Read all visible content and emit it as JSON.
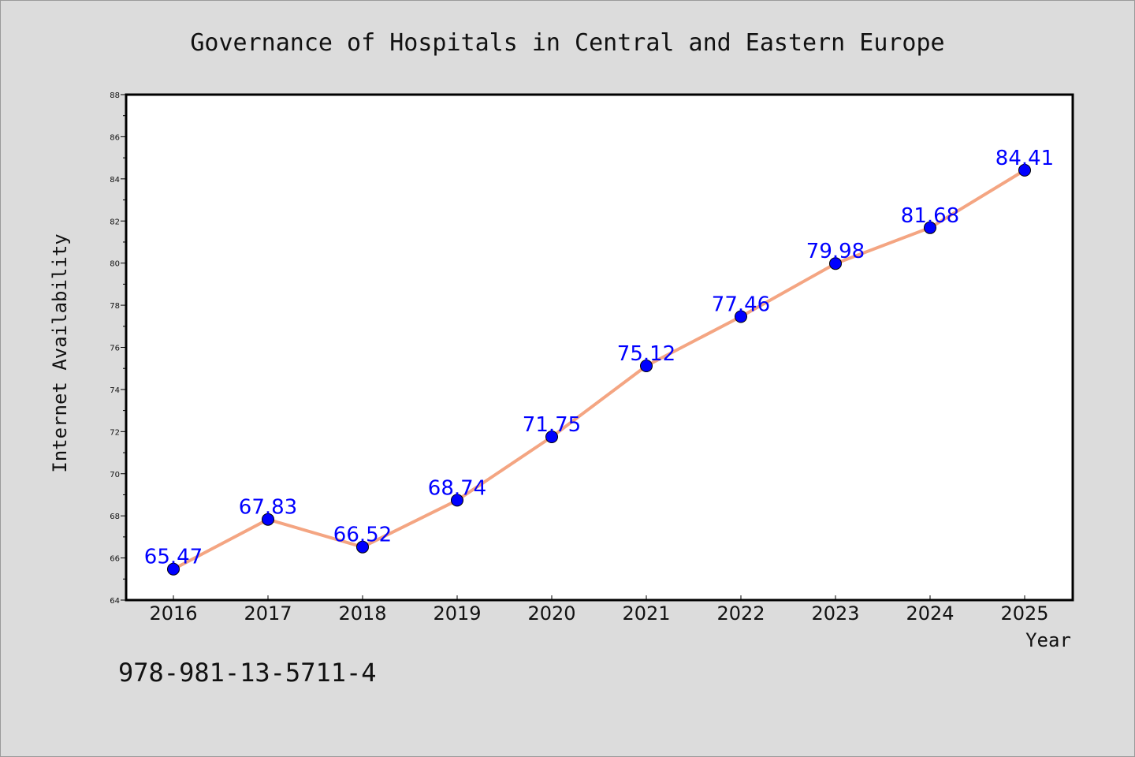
{
  "chart_data": {
    "type": "line",
    "title": "Governance of Hospitals in Central and Eastern Europe",
    "xlabel": "Year",
    "ylabel": "Internet Availability",
    "categories": [
      "2016",
      "2017",
      "2018",
      "2019",
      "2020",
      "2021",
      "2022",
      "2023",
      "2024",
      "2025"
    ],
    "values": [
      65.47,
      67.83,
      66.52,
      68.74,
      71.75,
      75.12,
      77.46,
      79.98,
      81.68,
      84.41
    ],
    "data_labels": [
      "65.47",
      "67.83",
      "66.52",
      "68.74",
      "71.75",
      "75.12",
      "77.46",
      "79.98",
      "81.68",
      "84.41"
    ],
    "ylim": [
      64,
      88
    ],
    "yticks": [
      64,
      66,
      68,
      70,
      72,
      74,
      76,
      78,
      80,
      82,
      84,
      86,
      88
    ],
    "grid": false,
    "line_color": "#f4a582",
    "marker_color": "#0000ff",
    "label_color": "#0000ff"
  },
  "footer": {
    "text": "978-981-13-5711-4"
  }
}
